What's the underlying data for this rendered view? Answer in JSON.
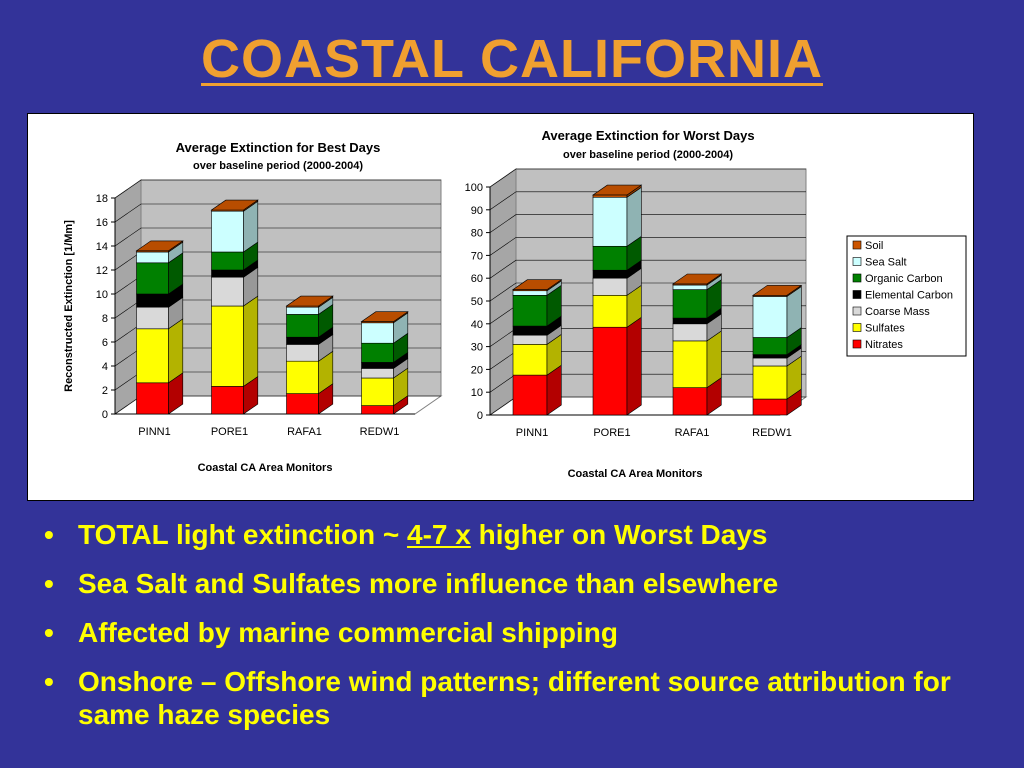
{
  "slide": {
    "title": "COASTAL  CALIFORNIA",
    "bullets": [
      {
        "pre": "TOTAL light extinction ~ ",
        "emph": "4-7 x",
        "post": "  higher on Worst Days"
      },
      {
        "pre": "Sea Salt and Sulfates more influence than elsewhere",
        "emph": "",
        "post": ""
      },
      {
        "pre": "Affected by marine commercial shipping",
        "emph": "",
        "post": ""
      },
      {
        "pre": "Onshore – Offshore wind patterns;  different source attribution for same haze species",
        "emph": "",
        "post": ""
      }
    ]
  },
  "colors": {
    "Nitrates": "#ff0000",
    "Sulfates": "#ffff00",
    "Coarse Mass": "#d9d9d9",
    "Elemental Carbon": "#000000",
    "Organic Carbon": "#008000",
    "Sea Salt": "#ccffff",
    "Soil": "#cc5500"
  },
  "chart_data": [
    {
      "type": "bar",
      "stacked": true,
      "title": "Average Extinction for Best Days",
      "subtitle": "over baseline period (2000-2004)",
      "xlabel": "Coastal CA Area Monitors",
      "ylabel": "Reconstructed Extinction [1/Mm]",
      "ylim": [
        0,
        18
      ],
      "yticks": [
        0,
        2,
        4,
        6,
        8,
        10,
        12,
        14,
        16,
        18
      ],
      "categories": [
        "PINN1",
        "PORE1",
        "RAFA1",
        "REDW1"
      ],
      "grid": true,
      "series": [
        {
          "name": "Nitrates",
          "values": [
            2.6,
            2.3,
            1.7,
            0.7
          ]
        },
        {
          "name": "Sulfates",
          "values": [
            4.5,
            6.7,
            2.7,
            2.3
          ]
        },
        {
          "name": "Coarse Mass",
          "values": [
            1.8,
            2.4,
            1.4,
            0.8
          ]
        },
        {
          "name": "Elemental Carbon",
          "values": [
            1.1,
            0.6,
            0.6,
            0.5
          ]
        },
        {
          "name": "Organic Carbon",
          "values": [
            2.6,
            1.5,
            1.9,
            1.6
          ]
        },
        {
          "name": "Sea Salt",
          "values": [
            0.9,
            3.4,
            0.6,
            1.7
          ]
        },
        {
          "name": "Soil",
          "values": [
            0.1,
            0.1,
            0.1,
            0.1
          ]
        }
      ]
    },
    {
      "type": "bar",
      "stacked": true,
      "title": "Average Extinction for Worst Days",
      "subtitle": "over baseline period (2000-2004)",
      "xlabel": "Coastal CA Area Monitors",
      "ylabel": "",
      "ylim": [
        0,
        100
      ],
      "yticks": [
        0,
        10,
        20,
        30,
        40,
        50,
        60,
        70,
        80,
        90,
        100
      ],
      "categories": [
        "PINN1",
        "PORE1",
        "RAFA1",
        "REDW1"
      ],
      "grid": true,
      "legend": "right",
      "series": [
        {
          "name": "Nitrates",
          "values": [
            17.5,
            38.5,
            12,
            7
          ]
        },
        {
          "name": "Sulfates",
          "values": [
            13.5,
            14,
            20.5,
            14.5
          ]
        },
        {
          "name": "Coarse Mass",
          "values": [
            4,
            7.5,
            7.5,
            3.5
          ]
        },
        {
          "name": "Elemental Carbon",
          "values": [
            4,
            3.5,
            2.5,
            1.5
          ]
        },
        {
          "name": "Organic Carbon",
          "values": [
            13.5,
            10.5,
            12.5,
            7.5
          ]
        },
        {
          "name": "Sea Salt",
          "values": [
            2,
            21.5,
            2,
            18
          ]
        },
        {
          "name": "Soil",
          "values": [
            0.5,
            1,
            0.5,
            0.5
          ]
        }
      ],
      "legend_order": [
        "Soil",
        "Sea Salt",
        "Organic Carbon",
        "Elemental Carbon",
        "Coarse Mass",
        "Sulfates",
        "Nitrates"
      ]
    }
  ]
}
